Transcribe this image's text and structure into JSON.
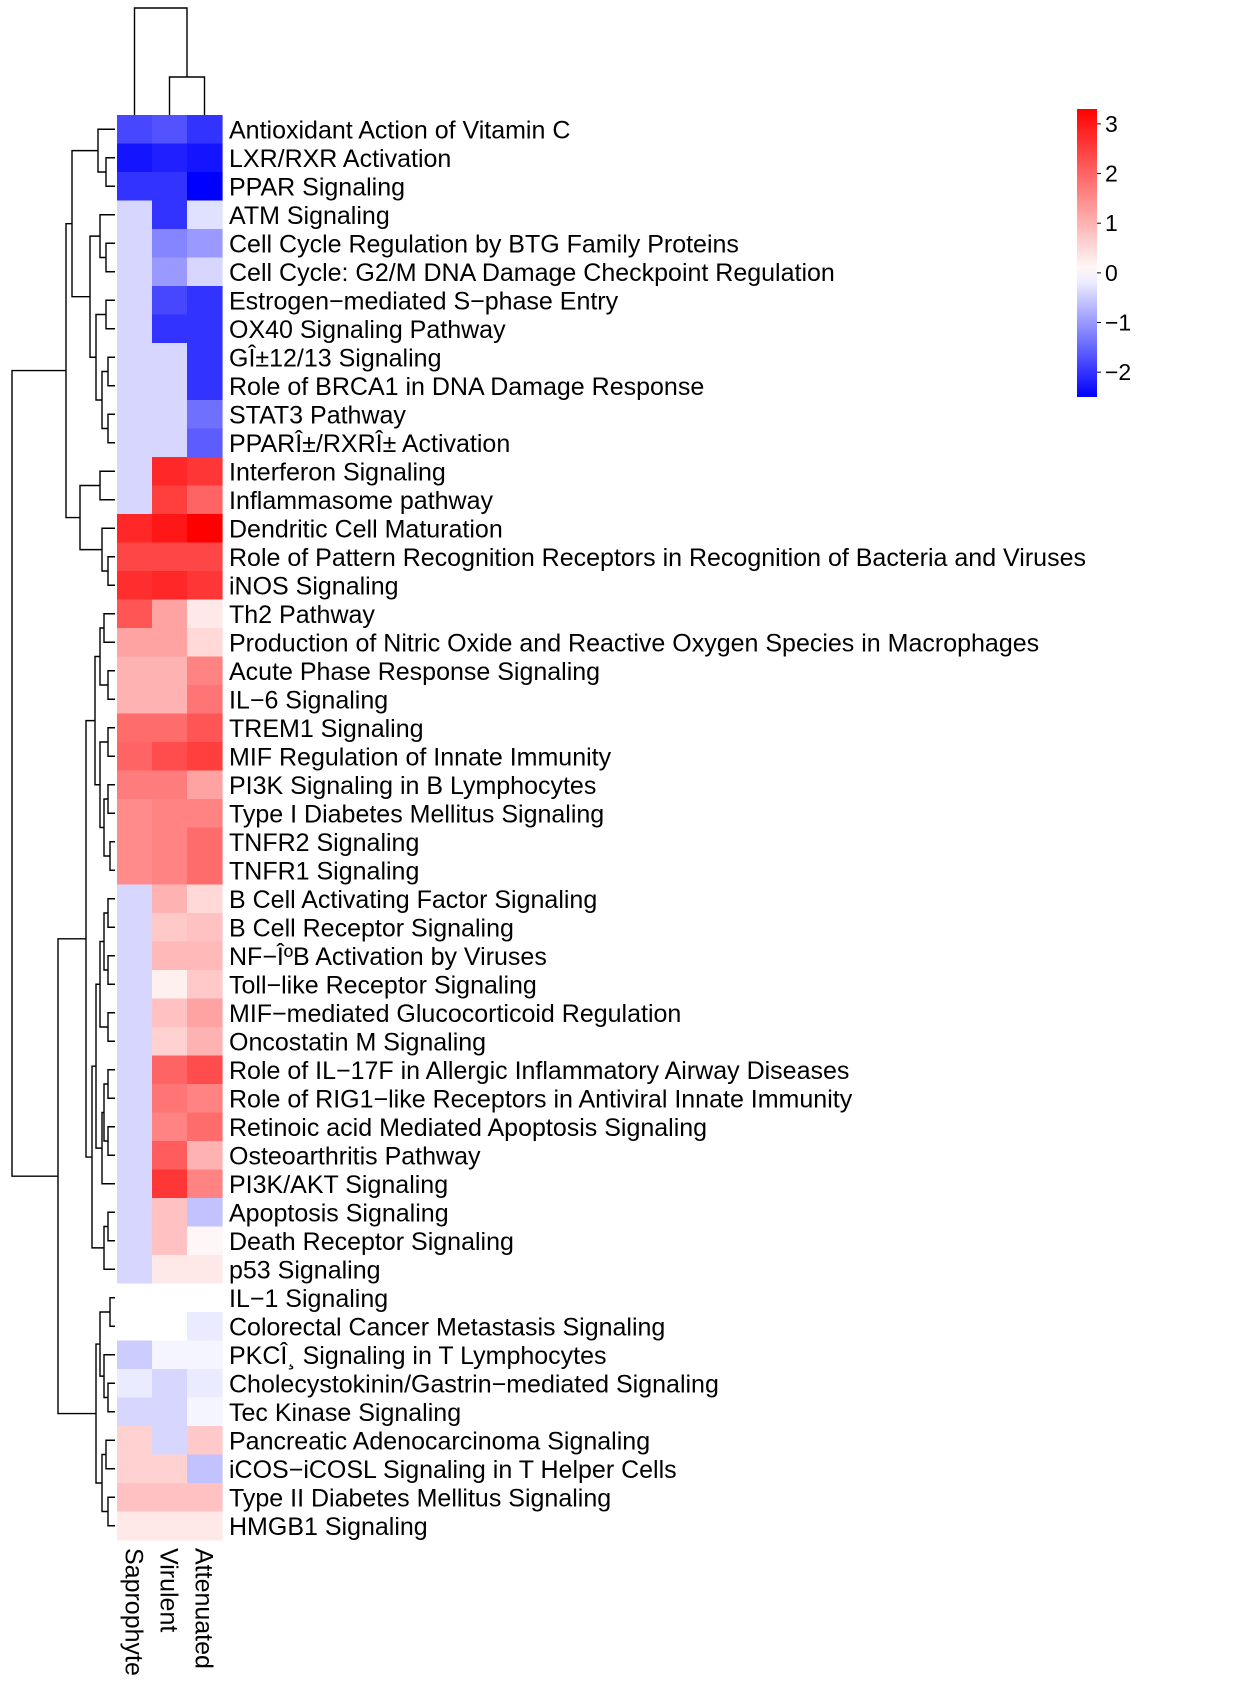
{
  "chart_data": {
    "type": "heatmap",
    "columns": [
      "Saprophyte",
      "Virulent",
      "Attenuated"
    ],
    "rows": [
      "Antioxidant Action of Vitamin C",
      "LXR/RXR Activation",
      "PPAR Signaling",
      "ATM Signaling",
      "Cell Cycle Regulation by BTG Family Proteins",
      "Cell Cycle: G2/M DNA Damage Checkpoint Regulation",
      "Estrogen−mediated S−phase Entry",
      "OX40 Signaling Pathway",
      "GÎ±12/13 Signaling",
      "Role of BRCA1 in DNA Damage Response",
      "STAT3 Pathway",
      "PPARÎ±/RXRÎ± Activation",
      "Interferon Signaling",
      "Inflammasome pathway",
      "Dendritic Cell Maturation",
      "Role of Pattern Recognition Receptors in Recognition of Bacteria and Viruses",
      "iNOS Signaling",
      "Th2 Pathway",
      "Production of Nitric Oxide and Reactive Oxygen Species in Macrophages",
      "Acute Phase Response Signaling",
      "IL−6 Signaling",
      "TREM1 Signaling",
      "MIF Regulation of Innate Immunity",
      "PI3K Signaling in B Lymphocytes",
      "Type I Diabetes Mellitus Signaling",
      "TNFR2 Signaling",
      "TNFR1 Signaling",
      "B Cell Activating Factor Signaling",
      "B Cell Receptor Signaling",
      "NF−ÎºB Activation by Viruses",
      "Toll−like Receptor Signaling",
      "MIF−mediated Glucocorticoid Regulation",
      "Oncostatin M Signaling",
      "Role of IL−17F in Allergic Inflammatory Airway Diseases",
      "Role of RIG1−like Receptors in Antiviral Innate Immunity",
      "Retinoic acid Mediated Apoptosis Signaling",
      "Osteoarthritis Pathway",
      "PI3K/AKT Signaling",
      "Apoptosis Signaling",
      "Death Receptor Signaling",
      "p53 Signaling",
      "IL−1 Signaling",
      "Colorectal Cancer Metastasis Signaling",
      "PKCÎ¸ Signaling in T Lymphocytes",
      "Cholecystokinin/Gastrin−mediated Signaling",
      "Tec Kinase Signaling",
      "Pancreatic Adenocarcinoma Signaling",
      "iCOS−iCOSL Signaling in T Helper Cells",
      "Type II Diabetes Mellitus Signaling",
      "HMGB1 Signaling"
    ],
    "values": [
      [
        -1.8,
        -1.7,
        -2.0
      ],
      [
        -2.3,
        -2.2,
        -2.3
      ],
      [
        -2.0,
        -2.0,
        -2.5
      ],
      [
        -0.4,
        -2.0,
        -0.3
      ],
      [
        -0.4,
        -1.2,
        -1.0
      ],
      [
        -0.4,
        -1.0,
        -0.4
      ],
      [
        -0.4,
        -1.8,
        -2.0
      ],
      [
        -0.4,
        -2.0,
        -2.0
      ],
      [
        -0.4,
        -0.4,
        -2.0
      ],
      [
        -0.4,
        -0.4,
        -2.0
      ],
      [
        -0.4,
        -0.4,
        -1.4
      ],
      [
        -0.4,
        -0.4,
        -1.6
      ],
      [
        -0.4,
        2.8,
        2.6
      ],
      [
        -0.4,
        2.5,
        2.0
      ],
      [
        2.8,
        3.0,
        3.3
      ],
      [
        2.4,
        2.4,
        2.4
      ],
      [
        2.7,
        2.8,
        2.6
      ],
      [
        2.2,
        1.2,
        0.3
      ],
      [
        1.2,
        1.2,
        0.5
      ],
      [
        1.0,
        1.0,
        1.6
      ],
      [
        1.0,
        1.0,
        1.8
      ],
      [
        1.9,
        1.9,
        2.2
      ],
      [
        2.0,
        2.3,
        2.5
      ],
      [
        1.7,
        1.7,
        1.2
      ],
      [
        1.5,
        1.6,
        1.6
      ],
      [
        1.5,
        1.6,
        1.9
      ],
      [
        1.5,
        1.6,
        1.9
      ],
      [
        -0.4,
        1.0,
        0.5
      ],
      [
        -0.4,
        0.7,
        0.8
      ],
      [
        -0.4,
        0.9,
        0.9
      ],
      [
        -0.4,
        0.2,
        0.7
      ],
      [
        -0.4,
        0.8,
        1.2
      ],
      [
        -0.4,
        0.6,
        1.0
      ],
      [
        -0.4,
        2.0,
        2.3
      ],
      [
        -0.4,
        1.8,
        1.6
      ],
      [
        -0.4,
        1.6,
        1.9
      ],
      [
        -0.4,
        2.1,
        1.0
      ],
      [
        -0.4,
        2.6,
        1.6
      ],
      [
        -0.4,
        0.8,
        -0.6
      ],
      [
        -0.4,
        0.8,
        0.1
      ],
      [
        -0.4,
        0.3,
        0.3
      ],
      [
        0.0,
        0.0,
        0.0
      ],
      [
        0.0,
        0.0,
        -0.2
      ],
      [
        -0.5,
        -0.1,
        -0.1
      ],
      [
        -0.2,
        -0.4,
        -0.2
      ],
      [
        -0.4,
        -0.4,
        -0.1
      ],
      [
        0.6,
        -0.4,
        0.7
      ],
      [
        0.6,
        0.6,
        -0.6
      ],
      [
        0.8,
        0.8,
        0.8
      ],
      [
        0.3,
        0.3,
        0.3
      ]
    ],
    "colorbar": {
      "ticks": [
        3,
        2,
        1,
        0,
        -1,
        -2
      ],
      "tick_labels": [
        "3",
        "2",
        "1",
        "0",
        "−1",
        "−2"
      ],
      "range": [
        -2.5,
        3.3
      ],
      "low_color": "#0000ff",
      "mid_color": "#ffffff",
      "high_color": "#ff0000",
      "placement": "top-right"
    },
    "row_dendrogram": true,
    "column_dendrogram": true
  }
}
